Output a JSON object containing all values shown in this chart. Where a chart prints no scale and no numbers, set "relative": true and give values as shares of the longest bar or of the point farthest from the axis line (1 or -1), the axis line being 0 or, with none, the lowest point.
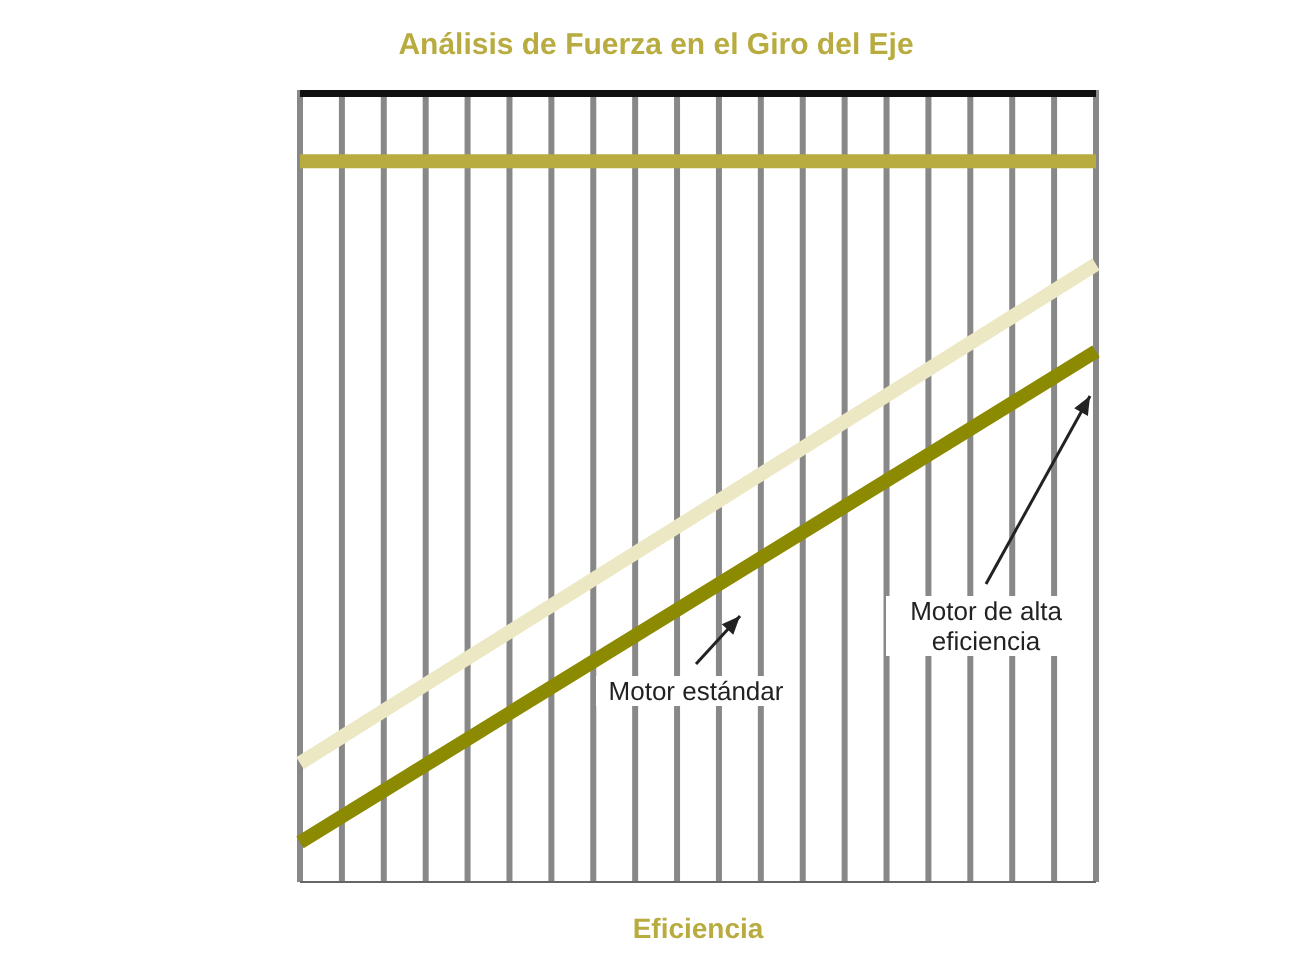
{
  "chart_data": {
    "type": "line",
    "title": "Análisis de Fuerza en el Giro del Eje",
    "xlabel": "Eficiencia",
    "relative": true,
    "categories": [
      null,
      null
    ],
    "series": [
      {
        "color": "#ece8c4",
        "values": [
          0.15,
          0.78
        ]
      },
      {
        "color": "#111111",
        "values": [
          1,
          1
        ]
      },
      {
        "color": "#8c8a00",
        "values": [
          0.05,
          0.67
        ]
      },
      {
        "color": "#b8ac40",
        "values": [
          0.91,
          0.91
        ]
      }
    ],
    "annotations": [
      "Motor estándar",
      "Motor de alta eficiencia"
    ],
    "grid": "x"
  }
}
